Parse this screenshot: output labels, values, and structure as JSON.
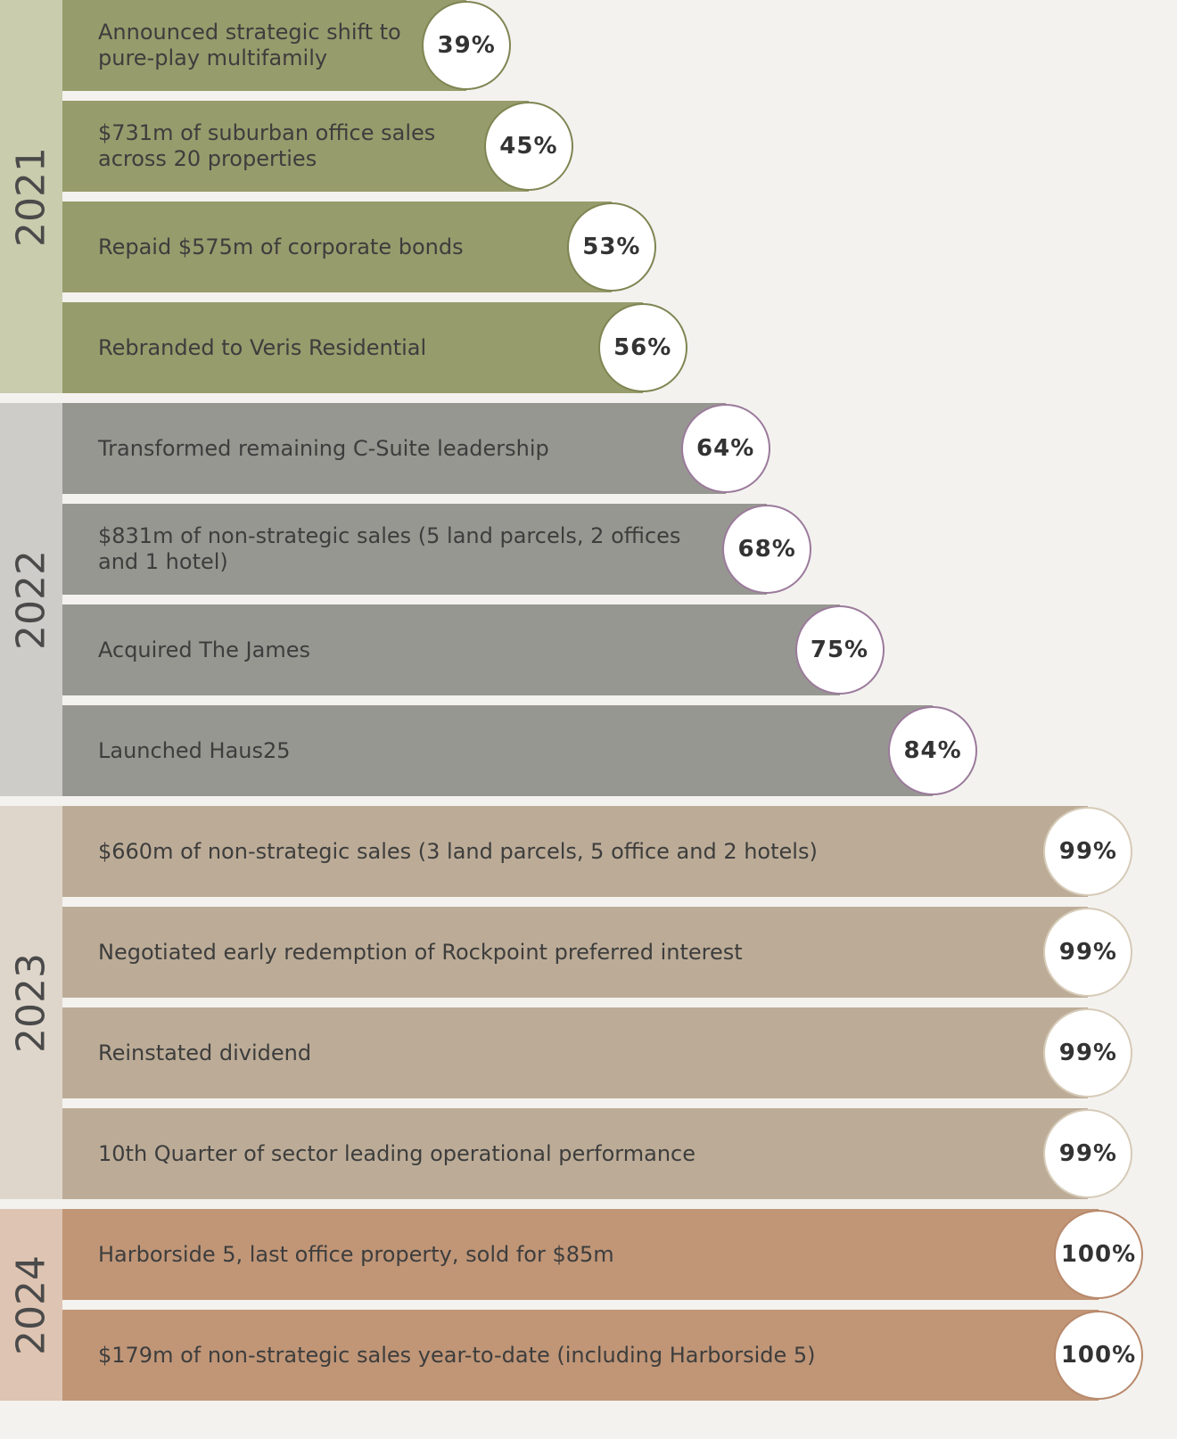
{
  "chart_data": {
    "type": "bar",
    "orientation": "horizontal",
    "xlim": [
      0,
      100
    ],
    "groups": [
      {
        "name": "2021",
        "color": "#979c6c",
        "band_color": "#c9ccad",
        "circle_stroke": "#7f8552",
        "categories": [
          "Announced strategic shift to pure-play multifamily",
          "$731m of suburban office sales across 20 properties",
          "Repaid $575m of corporate bonds",
          "Rebranded to Veris Residential"
        ],
        "values": [
          39,
          45,
          53,
          56
        ],
        "value_labels": [
          "39%",
          "45%",
          "53%",
          "56%"
        ]
      },
      {
        "name": "2022",
        "color": "#979791",
        "band_color": "#cdccc8",
        "circle_stroke": "#9b7a9b",
        "categories": [
          "Transformed remaining C-Suite leadership",
          "$831m of non-strategic sales (5 land parcels, 2 offices and 1 hotel)",
          "Acquired The James",
          "Launched Haus25"
        ],
        "values": [
          64,
          68,
          75,
          84
        ],
        "value_labels": [
          "64%",
          "68%",
          "75%",
          "84%"
        ]
      },
      {
        "name": "2023",
        "color": "#bcac97",
        "band_color": "#dfd6cb",
        "circle_stroke": "#d6cbb8",
        "categories": [
          "$660m of non-strategic sales (3 land parcels, 5 office and 2 hotels)",
          "Negotiated early redemption of Rockpoint preferred interest",
          "Reinstated dividend",
          "10th Quarter of sector leading operational performance"
        ],
        "values": [
          99,
          99,
          99,
          99
        ],
        "value_labels": [
          "99%",
          "99%",
          "99%",
          "99%"
        ]
      },
      {
        "name": "2024",
        "color": "#c09677",
        "band_color": "#dec4b2",
        "circle_stroke": "#b8886a",
        "categories": [
          "Harborside 5, last office property, sold for $85m",
          "$179m of non-strategic sales year-to-date (including Harborside 5)"
        ],
        "values": [
          100,
          100
        ],
        "value_labels": [
          "100%",
          "100%"
        ]
      }
    ]
  }
}
